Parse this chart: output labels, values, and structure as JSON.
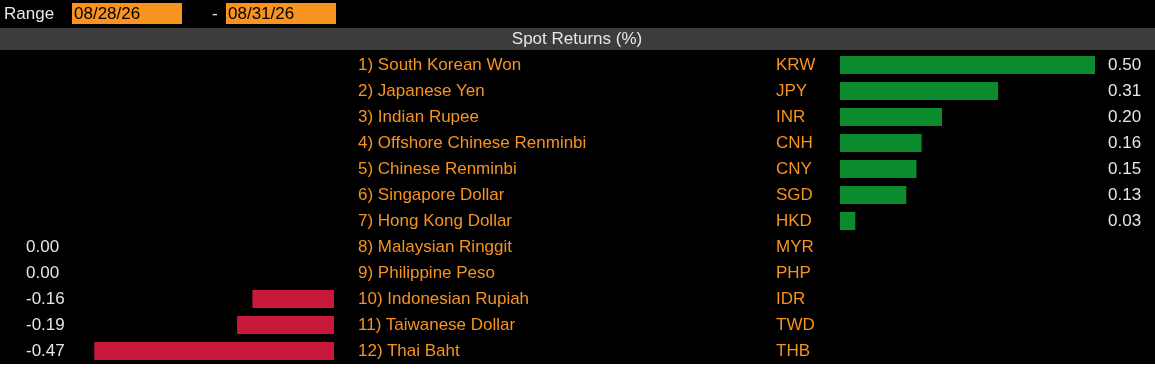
{
  "chart_data": [
    {
      "type": "bar",
      "orientation": "horizontal",
      "title": "Spot Returns (%)",
      "categories": [
        "1) South Korean Won",
        "2) Japanese Yen",
        "3) Indian Rupee",
        "4) Offshore Chinese Renminbi",
        "5) Chinese Renminbi",
        "6) Singapore Dollar",
        "7) Hong Kong Dollar",
        "8) Malaysian Ringgit",
        "9) Philippine Peso",
        "10) Indonesian Rupiah",
        "11) Taiwanese Dollar",
        "12) Thai Baht"
      ],
      "values": [
        null,
        null,
        null,
        null,
        null,
        null,
        null,
        0.0,
        0.0,
        -0.16,
        -0.19,
        -0.47
      ],
      "data_labels": true,
      "value_labels": [
        null,
        null,
        null,
        null,
        null,
        null,
        null,
        "0.00",
        "0.00",
        "-0.16",
        "-0.19",
        "-0.47"
      ],
      "colors": [
        "#c8193a",
        "#c8193a",
        "#c8193a",
        "#c8193a",
        "#c8193a",
        "#c8193a",
        "#c8193a",
        "#c8193a",
        "#c8193a",
        "#c8193a",
        "#c8193a",
        "#c8193a"
      ],
      "annotations": [
        "Range",
        "08/28/26",
        "-",
        "08/31/26"
      ]
    },
    {
      "type": "bar",
      "orientation": "horizontal",
      "categories": [
        "KRW",
        "JPY",
        "INR",
        "CNH",
        "CNY",
        "SGD",
        "HKD",
        "MYR",
        "PHP",
        "IDR",
        "TWD",
        "THB"
      ],
      "values": [
        0.5,
        0.31,
        0.2,
        0.16,
        0.15,
        0.13,
        0.03,
        null,
        null,
        null,
        null,
        null
      ],
      "data_labels": true,
      "value_labels": [
        "0.50",
        "0.31",
        "0.20",
        "0.16",
        "0.15",
        "0.13",
        "0.03",
        null,
        null,
        null,
        null,
        null
      ],
      "colors": [
        "#0b8a2e",
        "#0b8a2e",
        "#0b8a2e",
        "#0b8a2e",
        "#0b8a2e",
        "#0b8a2e",
        "#0b8a2e",
        "#0b8a2e",
        "#0b8a2e",
        "#0b8a2e",
        "#0b8a2e",
        "#0b8a2e"
      ]
    }
  ]
}
